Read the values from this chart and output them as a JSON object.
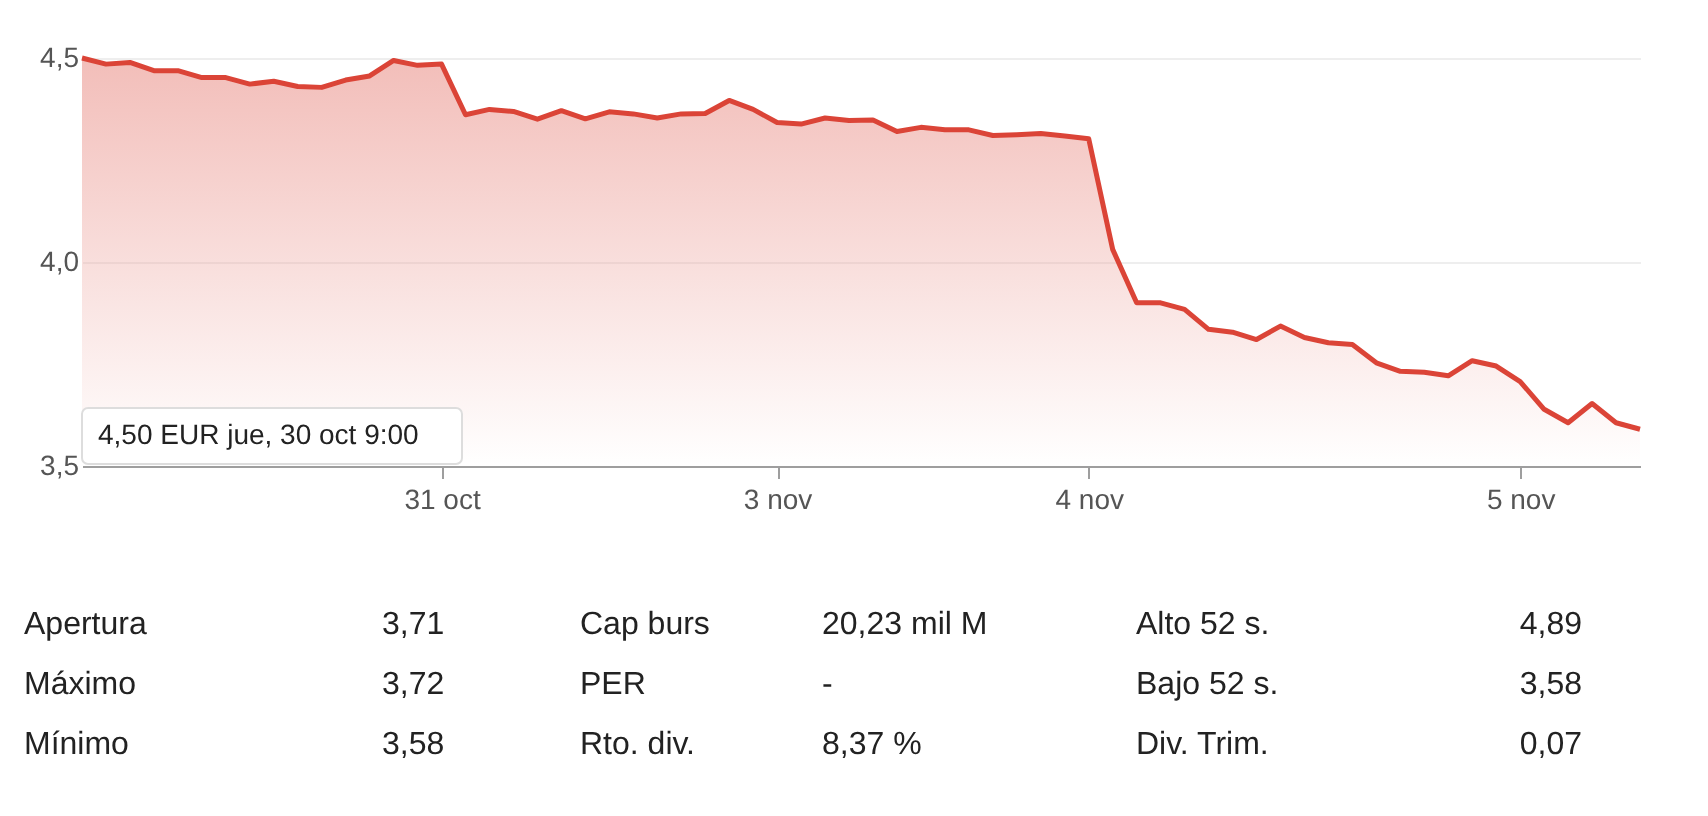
{
  "chart_data": [
    {
      "type": "area",
      "color": "#db4437",
      "categories": [
        null,
        null,
        null,
        null,
        null,
        null,
        null,
        null,
        null,
        null,
        null,
        null,
        null,
        null,
        null,
        "31 oct",
        null,
        null,
        null,
        null,
        null,
        null,
        null,
        null,
        null,
        null,
        null,
        null,
        null,
        "3 nov",
        null,
        null,
        null,
        null,
        null,
        null,
        null,
        null,
        null,
        null,
        null,
        null,
        "4 nov",
        null,
        null,
        null,
        null,
        null,
        null,
        null,
        null,
        null,
        null,
        null,
        null,
        null,
        null,
        null,
        null,
        null,
        "5 nov",
        null,
        null,
        null,
        null,
        null
      ],
      "values": [
        4.5,
        4.485,
        4.489,
        4.469,
        4.469,
        4.452,
        4.452,
        4.436,
        4.443,
        4.43,
        4.428,
        4.446,
        4.456,
        4.494,
        4.482,
        4.485,
        4.361,
        4.374,
        4.369,
        4.35,
        4.371,
        4.351,
        4.368,
        4.363,
        4.353,
        4.363,
        4.364,
        4.396,
        4.374,
        4.342,
        4.338,
        4.353,
        4.347,
        4.348,
        4.32,
        4.33,
        4.324,
        4.324,
        4.31,
        4.312,
        4.315,
        4.309,
        4.302,
        4.031,
        3.9,
        3.9,
        3.884,
        3.835,
        3.828,
        3.81,
        3.843,
        3.815,
        3.802,
        3.798,
        3.753,
        3.732,
        3.73,
        3.721,
        3.758,
        3.745,
        3.707,
        3.639,
        3.606,
        3.653,
        3.606,
        3.59
      ],
      "ylim": [
        3.5,
        4.5
      ],
      "yticks": [
        {
          "value": 3.5,
          "label": "3,5"
        },
        {
          "value": 4.0,
          "label": "4,0"
        },
        {
          "value": 4.5,
          "label": "4,5"
        }
      ],
      "grid": "y",
      "annotations": [
        "4,50 EUR  jue, 30 oct 9:00"
      ]
    },
    {
      "type": "other",
      "annotations": [
        "Apertura",
        "3,71",
        "Cap burs",
        "20,23 mil M",
        "Alto 52 s.",
        "4,89",
        "Máximo",
        "3,72",
        "PER",
        "-",
        "Bajo 52 s.",
        "3,58",
        "Mínimo",
        "3,58",
        "Rto. div.",
        "8,37 %",
        "Div. Trim.",
        "0,07"
      ]
    }
  ]
}
